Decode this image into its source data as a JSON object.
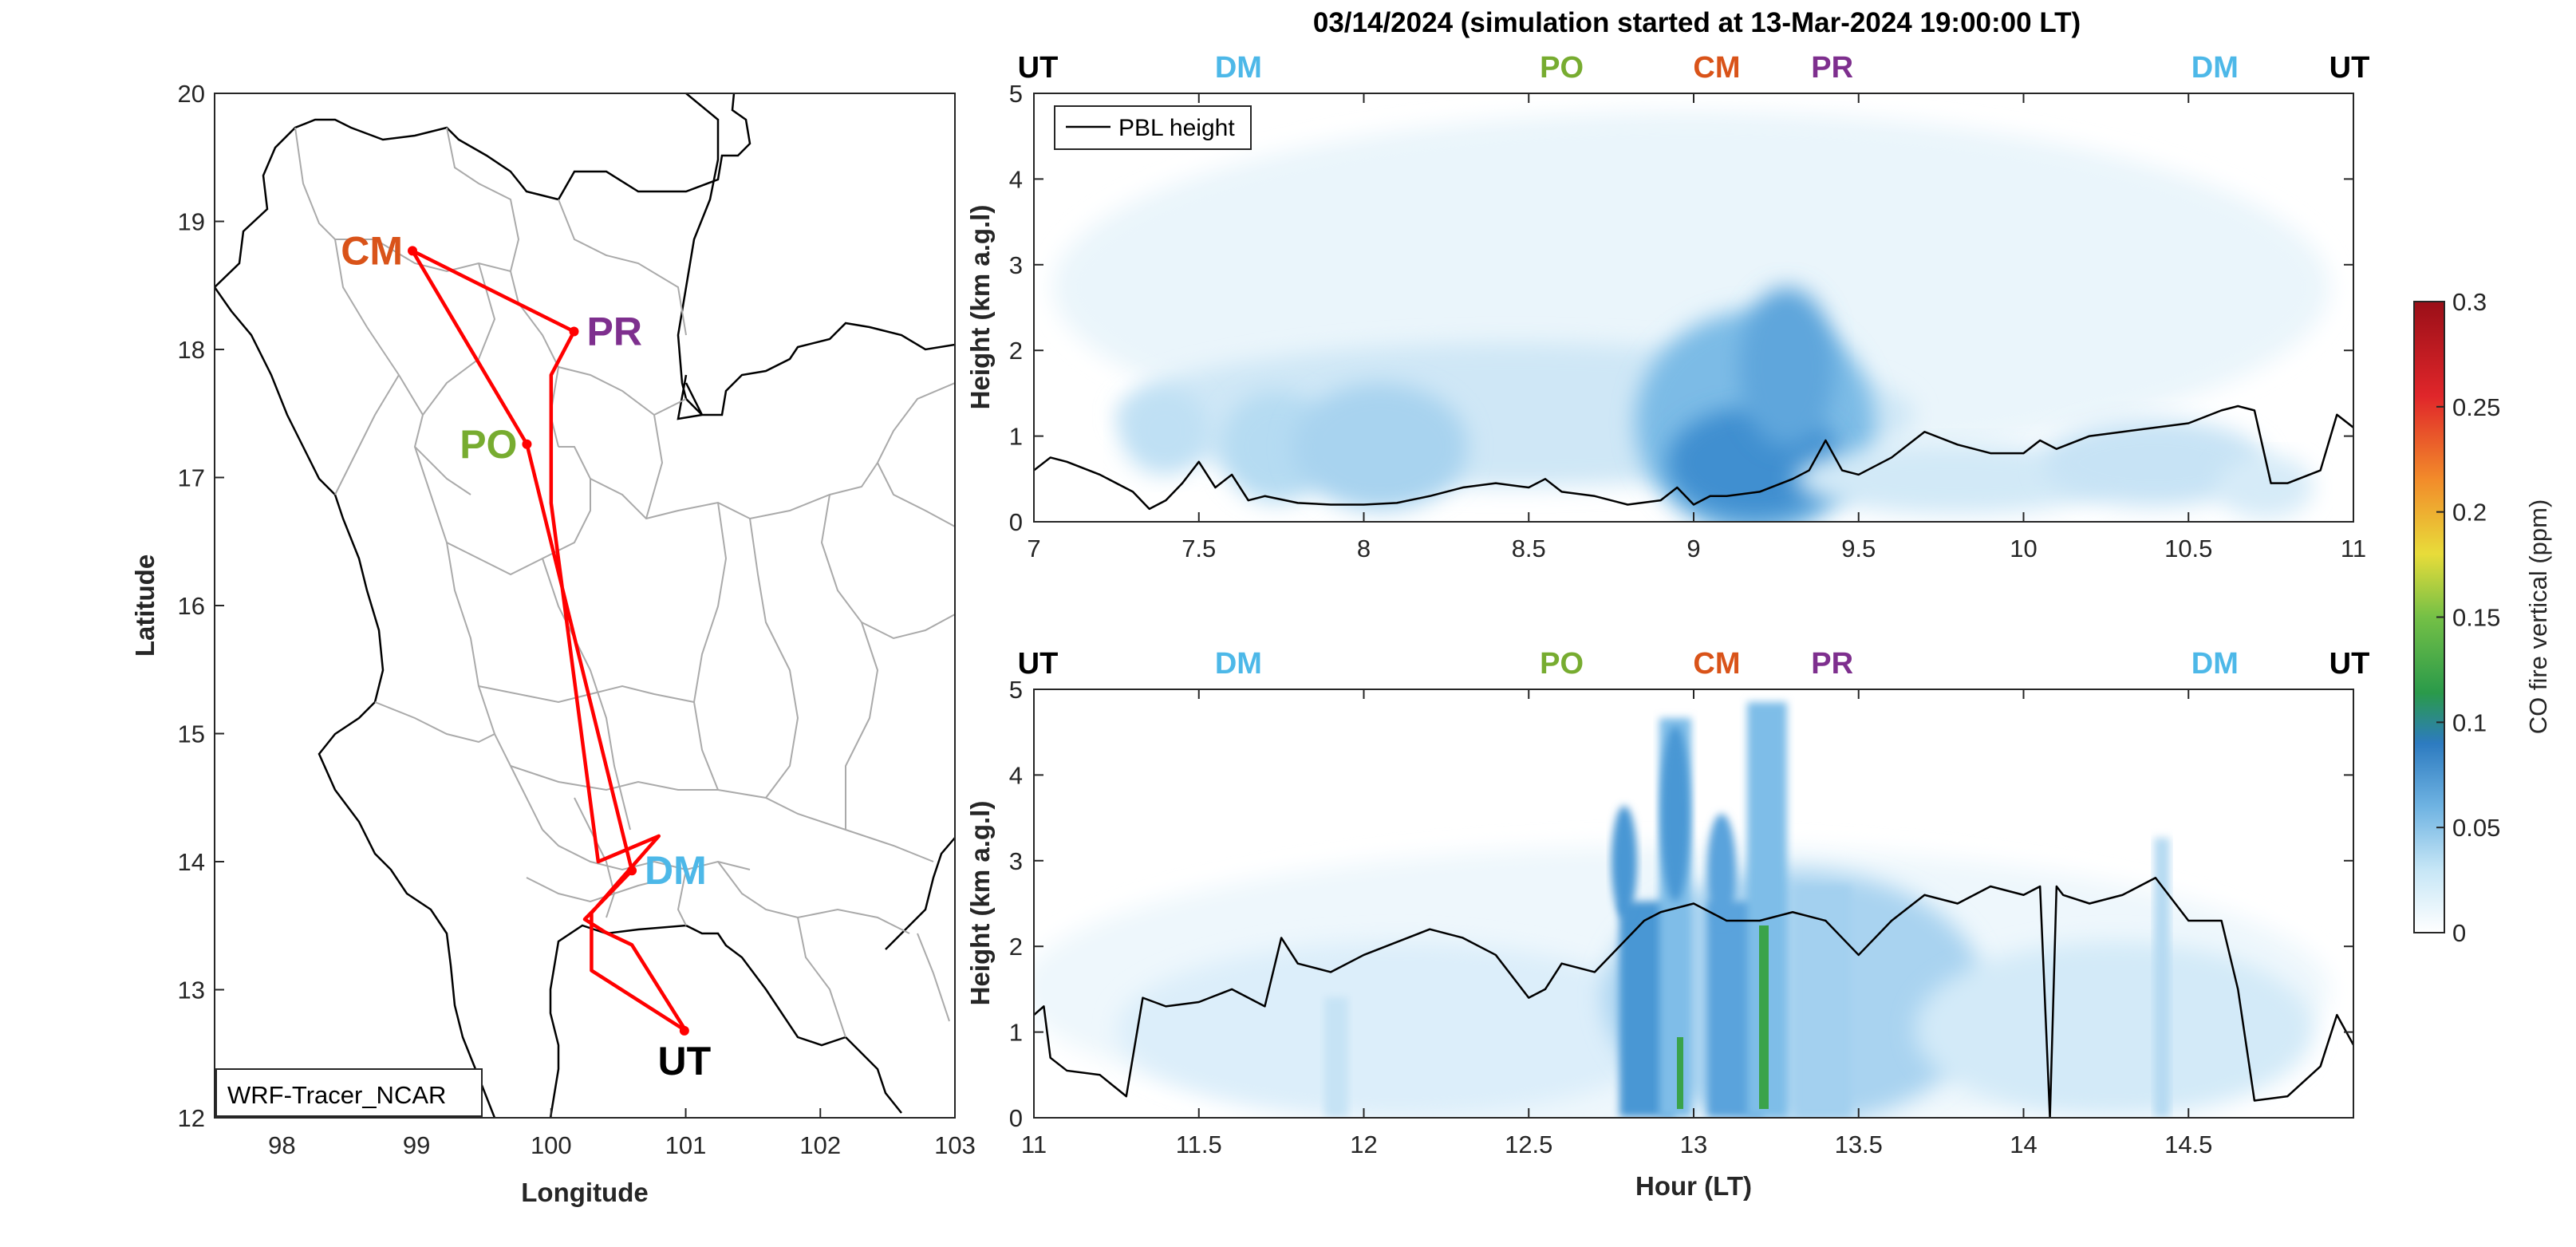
{
  "title": "03/14/2024 (simulation started at 13-Mar-2024 19:00:00 LT)",
  "colors": {
    "UT": "#000000",
    "DM": "#4db8e8",
    "PO": "#77ac30",
    "CM": "#d95319",
    "PR": "#7e2f8e",
    "route": "#ff0000",
    "pbl": "#000000",
    "border": "#aaaaaa",
    "coast": "#000000"
  },
  "map": {
    "xlabel": "Longitude",
    "ylabel": "Latitude",
    "xticks": [
      98,
      99,
      100,
      101,
      102,
      103
    ],
    "yticks": [
      12,
      13,
      14,
      15,
      16,
      17,
      18,
      19,
      20
    ],
    "xlim": [
      97.5,
      103
    ],
    "ylim": [
      12,
      20
    ],
    "model_label": "WRF-Tracer_NCAR",
    "sites": [
      {
        "code": "CM",
        "lon": 98.97,
        "lat": 18.77,
        "label_side": "left"
      },
      {
        "code": "PR",
        "lon": 100.17,
        "lat": 18.14,
        "label_side": "right"
      },
      {
        "code": "PO",
        "lon": 99.82,
        "lat": 17.26,
        "label_side": "left"
      },
      {
        "code": "DM",
        "lon": 100.6,
        "lat": 13.93,
        "label_side": "right"
      },
      {
        "code": "UT",
        "lon": 100.99,
        "lat": 12.68,
        "label_side": "below"
      }
    ],
    "route": [
      [
        101.0,
        12.68
      ],
      [
        100.3,
        13.15
      ],
      [
        100.3,
        13.6
      ],
      [
        100.8,
        14.2
      ],
      [
        100.35,
        14.0
      ],
      [
        100.0,
        16.8
      ],
      [
        100.0,
        17.8
      ],
      [
        100.17,
        18.14
      ],
      [
        98.97,
        18.77
      ],
      [
        99.82,
        17.26
      ],
      [
        100.6,
        13.93
      ],
      [
        100.25,
        13.55
      ],
      [
        100.4,
        13.45
      ],
      [
        100.6,
        13.35
      ],
      [
        101.0,
        12.68
      ]
    ]
  },
  "top_panel": {
    "site_markers": [
      {
        "code": "UT",
        "hour": 7.0
      },
      {
        "code": "DM",
        "hour": 7.62
      },
      {
        "code": "PO",
        "hour": 8.6
      },
      {
        "code": "CM",
        "hour": 9.07
      },
      {
        "code": "PR",
        "hour": 9.42
      },
      {
        "code": "DM",
        "hour": 10.58
      },
      {
        "code": "UT",
        "hour": 11.0
      }
    ]
  },
  "bottom_panel": {
    "site_markers": [
      {
        "code": "UT",
        "hour": 11.0
      },
      {
        "code": "DM",
        "hour": 11.62
      },
      {
        "code": "PO",
        "hour": 12.6
      },
      {
        "code": "CM",
        "hour": 13.07
      },
      {
        "code": "PR",
        "hour": 13.42
      },
      {
        "code": "DM",
        "hour": 14.58
      },
      {
        "code": "UT",
        "hour": 15.0
      }
    ]
  },
  "colorbar": {
    "label": "CO fire vertical (ppm)",
    "ticks": [
      "0.3",
      "0.25",
      "0.2",
      "0.15",
      "0.1",
      "0.05",
      "0"
    ],
    "lim": [
      0,
      0.3
    ]
  },
  "chart_data": [
    {
      "type": "heatmap",
      "title": "03/14/2024 (simulation started at 13-Mar-2024 19:00:00 LT)",
      "xlabel": "",
      "ylabel": "Height (km a.g.l)",
      "xlim": [
        7,
        11
      ],
      "ylim": [
        0,
        5
      ],
      "xticks": [
        7,
        7.5,
        8,
        8.5,
        9,
        9.5,
        10,
        10.5,
        11
      ],
      "yticks": [
        0,
        1,
        2,
        3,
        4,
        5
      ],
      "legend": {
        "entries": [
          "PBL height"
        ],
        "placement": "top-left"
      },
      "series": [
        {
          "name": "PBL height",
          "x": [
            7.0,
            7.05,
            7.1,
            7.2,
            7.3,
            7.35,
            7.4,
            7.45,
            7.5,
            7.55,
            7.6,
            7.65,
            7.7,
            7.8,
            7.9,
            8.0,
            8.1,
            8.2,
            8.3,
            8.4,
            8.5,
            8.55,
            8.6,
            8.7,
            8.8,
            8.9,
            8.95,
            9.0,
            9.05,
            9.1,
            9.2,
            9.3,
            9.35,
            9.4,
            9.45,
            9.5,
            9.6,
            9.7,
            9.8,
            9.9,
            10.0,
            10.05,
            10.1,
            10.2,
            10.3,
            10.4,
            10.5,
            10.6,
            10.65,
            10.7,
            10.75,
            10.8,
            10.9,
            10.95,
            11.0
          ],
          "y": [
            0.6,
            0.75,
            0.7,
            0.55,
            0.35,
            0.15,
            0.25,
            0.45,
            0.7,
            0.4,
            0.55,
            0.25,
            0.3,
            0.22,
            0.2,
            0.2,
            0.22,
            0.3,
            0.4,
            0.45,
            0.4,
            0.5,
            0.35,
            0.3,
            0.2,
            0.25,
            0.4,
            0.2,
            0.3,
            0.3,
            0.35,
            0.5,
            0.6,
            0.95,
            0.6,
            0.55,
            0.75,
            1.05,
            0.9,
            0.8,
            0.8,
            0.95,
            0.85,
            1.0,
            1.05,
            1.1,
            1.15,
            1.3,
            1.35,
            1.3,
            0.45,
            0.45,
            0.6,
            1.25,
            1.1
          ]
        }
      ]
    },
    {
      "type": "heatmap",
      "xlabel": "Hour (LT)",
      "ylabel": "Height (km a.g.l)",
      "xlim": [
        11,
        15
      ],
      "ylim": [
        0,
        5
      ],
      "xticks": [
        11,
        11.5,
        12,
        12.5,
        13,
        13.5,
        14,
        14.5
      ],
      "yticks": [
        0,
        1,
        2,
        3,
        4,
        5
      ],
      "series": [
        {
          "name": "PBL height",
          "x": [
            11.0,
            11.03,
            11.05,
            11.1,
            11.2,
            11.28,
            11.33,
            11.4,
            11.5,
            11.6,
            11.7,
            11.75,
            11.8,
            11.9,
            12.0,
            12.1,
            12.2,
            12.3,
            12.4,
            12.5,
            12.55,
            12.6,
            12.7,
            12.8,
            12.85,
            12.9,
            13.0,
            13.1,
            13.2,
            13.3,
            13.4,
            13.5,
            13.6,
            13.7,
            13.8,
            13.9,
            14.0,
            14.05,
            14.08,
            14.1,
            14.12,
            14.2,
            14.3,
            14.4,
            14.5,
            14.6,
            14.65,
            14.7,
            14.8,
            14.9,
            14.95,
            15.0
          ],
          "y": [
            1.2,
            1.3,
            0.7,
            0.55,
            0.5,
            0.25,
            1.4,
            1.3,
            1.35,
            1.5,
            1.3,
            2.1,
            1.8,
            1.7,
            1.9,
            2.05,
            2.2,
            2.1,
            1.9,
            1.4,
            1.5,
            1.8,
            1.7,
            2.1,
            2.3,
            2.4,
            2.5,
            2.3,
            2.3,
            2.4,
            2.3,
            1.9,
            2.3,
            2.6,
            2.5,
            2.7,
            2.6,
            2.7,
            0.0,
            2.7,
            2.6,
            2.5,
            2.6,
            2.8,
            2.3,
            2.3,
            1.5,
            0.2,
            0.25,
            0.6,
            1.2,
            0.85
          ]
        }
      ]
    }
  ]
}
